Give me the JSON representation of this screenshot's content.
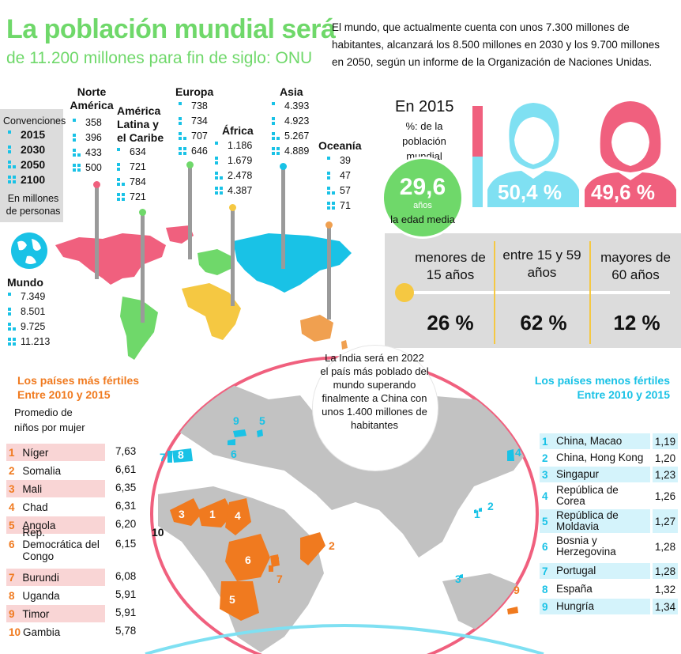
{
  "header": {
    "title": "La población mundial será",
    "subtitle": "de 11.200 millones para fin de siglo: ONU",
    "intro": "El mundo, que actualmente cuenta con unos 7.300 millones de habitantes, alcanzará los 8.500 millones en 2030 y los 9.700 millones en 2050, según un informe de la Organización de Naciones Unidas."
  },
  "conventions": {
    "label": "Convenciones",
    "years": [
      "2015",
      "2030",
      "2050",
      "2100"
    ],
    "unit": "En millones de personas"
  },
  "regions": {
    "norte_america": {
      "name": "Norte América",
      "values": [
        "358",
        "396",
        "433",
        "500"
      ]
    },
    "america_latina": {
      "name": "América Latina y el Caribe",
      "values": [
        "634",
        "721",
        "784",
        "721"
      ]
    },
    "europa": {
      "name": "Europa",
      "values": [
        "738",
        "734",
        "707",
        "646"
      ]
    },
    "africa": {
      "name": "África",
      "values": [
        "1.186",
        "1.679",
        "2.478",
        "4.387"
      ]
    },
    "asia": {
      "name": "Asia",
      "values": [
        "4.393",
        "4.923",
        "5.267",
        "4.889"
      ]
    },
    "oceania": {
      "name": "Oceanía",
      "values": [
        "39",
        "47",
        "57",
        "71"
      ]
    },
    "mundo": {
      "name": "Mundo",
      "values": [
        "7.349",
        "8.501",
        "9.725",
        "11.213"
      ]
    }
  },
  "stats_2015": {
    "year_label": "En 2015",
    "desc": "%: de la población mundial",
    "male_pct": "50,4 %",
    "female_pct": "49,6 %",
    "median_age": "29,6",
    "median_age_unit": "años",
    "median_age_label": "la edad media",
    "age_groups": [
      {
        "label": "menores de 15 años",
        "pct": "26 %"
      },
      {
        "label": "entre 15 y 59 años",
        "pct": "62 %"
      },
      {
        "label": "mayores de 60 años",
        "pct": "12 %"
      }
    ]
  },
  "india_note": "La India será en 2022 el país más poblado del mundo superando finalmente a China con unos 1.400 millones de habitantes",
  "fertile": {
    "title": "Los países más fértiles",
    "period": "Entre 2010 y 2015",
    "unit": "Promedio de niños por mujer",
    "items": [
      {
        "n": "1",
        "name": "Níger",
        "value": "7,63"
      },
      {
        "n": "2",
        "name": "Somalia",
        "value": "6,61"
      },
      {
        "n": "3",
        "name": "Mali",
        "value": "6,35"
      },
      {
        "n": "4",
        "name": "Chad",
        "value": "6,31"
      },
      {
        "n": "5",
        "name": "Angola",
        "value": "6,20"
      },
      {
        "n": "6",
        "name": "Rep. Democrática del Congo",
        "value": "6,15"
      },
      {
        "n": "7",
        "name": "Burundi",
        "value": "6,08"
      },
      {
        "n": "8",
        "name": "Uganda",
        "value": "5,91"
      },
      {
        "n": "9",
        "name": "Timor",
        "value": "5,91"
      },
      {
        "n": "10",
        "name": "Gambia",
        "value": "5,78"
      }
    ]
  },
  "least_fertile": {
    "title": "Los países menos fértiles",
    "period": "Entre 2010 y 2015",
    "items": [
      {
        "n": "1",
        "name": "China, Macao",
        "value": "1,19"
      },
      {
        "n": "2",
        "name": "China, Hong Kong",
        "value": "1,20"
      },
      {
        "n": "3",
        "name": "Singapur",
        "value": "1,23"
      },
      {
        "n": "4",
        "name": "República de Corea",
        "value": "1,26"
      },
      {
        "n": "5",
        "name": "República de Moldavia",
        "value": "1,27"
      },
      {
        "n": "6",
        "name": "Bosnia y Herzegovina",
        "value": "1,28"
      },
      {
        "n": "7",
        "name": "Portugal",
        "value": "1,28"
      },
      {
        "n": "8",
        "name": "España",
        "value": "1,32"
      },
      {
        "n": "9",
        "name": "Hungría",
        "value": "1,34"
      }
    ]
  },
  "map_markers": {
    "fertile": [
      "1",
      "2",
      "3",
      "4",
      "5",
      "6",
      "7",
      "8",
      "9",
      "10"
    ],
    "least": [
      "1",
      "2",
      "3",
      "4",
      "5",
      "6",
      "7",
      "8",
      "9"
    ]
  },
  "colors": {
    "green": "#6fd86a",
    "cyan": "#19c2e6",
    "pink": "#f0607e",
    "orange": "#f07a1f",
    "yellow": "#f5c842",
    "grey": "#dcdcdc"
  }
}
